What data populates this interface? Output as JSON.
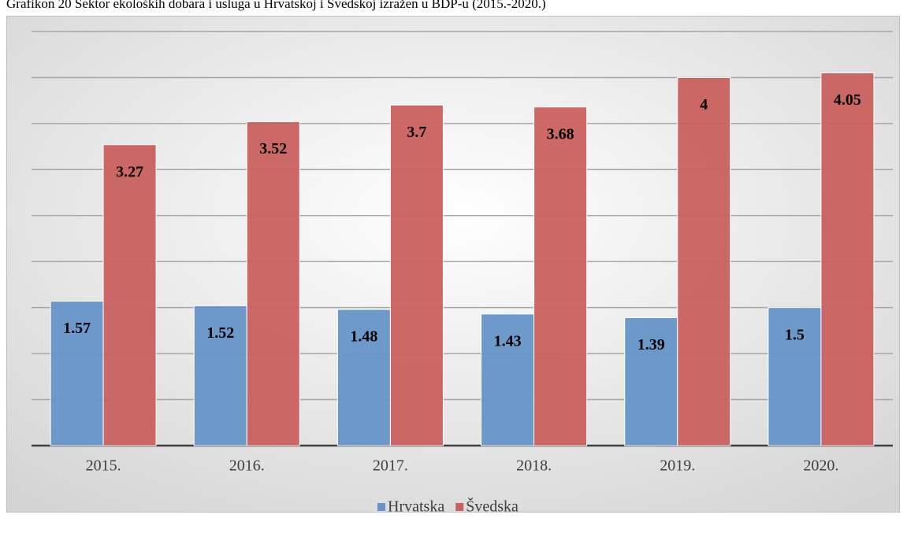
{
  "chart_data": {
    "type": "bar",
    "title": "Grafikon 20 Sektor ekoloških dobara i usluga u Hrvatskoj i Švedskoj izražen u BDP-u (2015.-2020.)",
    "categories": [
      "2015.",
      "2016.",
      "2017.",
      "2018.",
      "2019.",
      "2020."
    ],
    "series": [
      {
        "name": "Hrvatska",
        "color": "#6694c8",
        "values": [
          1.57,
          1.52,
          1.48,
          1.43,
          1.39,
          1.5
        ]
      },
      {
        "name": "Švedska",
        "color": "#c9605e",
        "values": [
          3.27,
          3.52,
          3.7,
          3.68,
          4,
          4.05
        ]
      }
    ],
    "ylim": [
      0,
      4.5
    ],
    "yticks": [
      0,
      0.5,
      1,
      1.5,
      2,
      2.5,
      3,
      3.5,
      4,
      4.5
    ],
    "grid": true,
    "legend": "bottom"
  }
}
